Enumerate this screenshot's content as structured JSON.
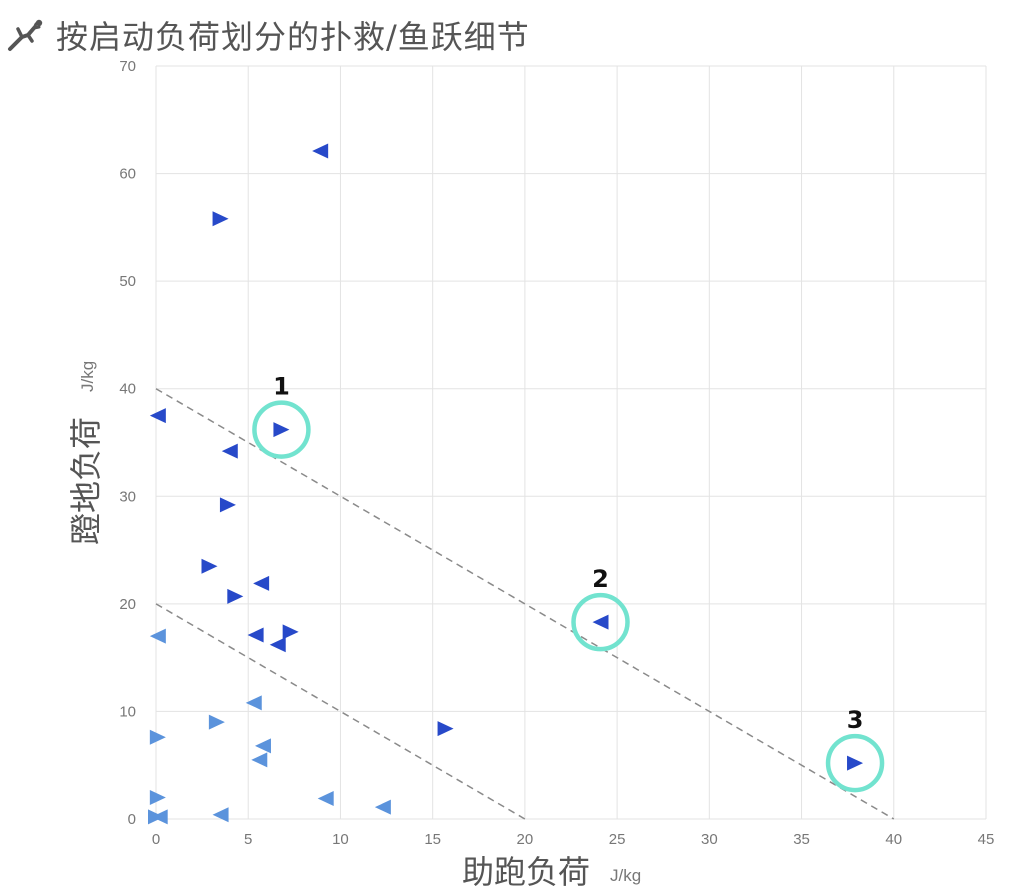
{
  "header": {
    "icon": "goalkeeper-dive-icon",
    "title": "按启动负荷划分的扑救/鱼跃细节"
  },
  "colors": {
    "marker_dark": "#2749c9",
    "marker_light": "#5b93dc",
    "circle": "#72e3cf",
    "grid": "#e3e3e3",
    "reference_line": "#8a8a8a"
  },
  "chart_data": {
    "type": "scatter",
    "title": "按启动负荷划分的扑救/鱼跃细节",
    "xlabel": "助跑负荷",
    "xunit": "J/kg",
    "ylabel": "蹬地负荷",
    "yunit": "J/kg",
    "xlim": [
      0,
      45
    ],
    "ylim": [
      0,
      70
    ],
    "xticks": [
      "0",
      "5",
      "10",
      "15",
      "20",
      "25",
      "30",
      "35",
      "40",
      "45"
    ],
    "yticks": [
      "0",
      "10",
      "20",
      "30",
      "40",
      "50",
      "60",
      "70"
    ],
    "grid": true,
    "marker": "triangle",
    "reference_lines": [
      {
        "x1": 0,
        "y1": 20,
        "x2": 20,
        "y2": 0,
        "style": "dashed"
      },
      {
        "x1": 0,
        "y1": 40,
        "x2": 40,
        "y2": 0,
        "style": "dashed"
      }
    ],
    "points": [
      {
        "x": 8.9,
        "y": 62.1,
        "dir": "left",
        "shade": "dark"
      },
      {
        "x": 3.5,
        "y": 55.8,
        "dir": "right",
        "shade": "dark"
      },
      {
        "x": 0.1,
        "y": 37.5,
        "dir": "left",
        "shade": "dark"
      },
      {
        "x": 6.8,
        "y": 36.2,
        "dir": "right",
        "shade": "dark"
      },
      {
        "x": 4.0,
        "y": 34.2,
        "dir": "left",
        "shade": "dark"
      },
      {
        "x": 3.9,
        "y": 29.2,
        "dir": "right",
        "shade": "dark"
      },
      {
        "x": 2.9,
        "y": 23.5,
        "dir": "right",
        "shade": "dark"
      },
      {
        "x": 5.7,
        "y": 21.9,
        "dir": "left",
        "shade": "dark"
      },
      {
        "x": 4.3,
        "y": 20.7,
        "dir": "right",
        "shade": "dark"
      },
      {
        "x": 24.1,
        "y": 18.3,
        "dir": "left",
        "shade": "dark"
      },
      {
        "x": 7.3,
        "y": 17.4,
        "dir": "right",
        "shade": "dark"
      },
      {
        "x": 5.4,
        "y": 17.1,
        "dir": "left",
        "shade": "dark"
      },
      {
        "x": 0.1,
        "y": 17.0,
        "dir": "left",
        "shade": "light"
      },
      {
        "x": 6.6,
        "y": 16.2,
        "dir": "left",
        "shade": "dark"
      },
      {
        "x": 5.3,
        "y": 10.8,
        "dir": "left",
        "shade": "light"
      },
      {
        "x": 3.3,
        "y": 9.0,
        "dir": "right",
        "shade": "light"
      },
      {
        "x": 15.7,
        "y": 8.4,
        "dir": "right",
        "shade": "dark"
      },
      {
        "x": 0.1,
        "y": 7.6,
        "dir": "right",
        "shade": "light"
      },
      {
        "x": 5.8,
        "y": 6.8,
        "dir": "left",
        "shade": "light"
      },
      {
        "x": 5.6,
        "y": 5.5,
        "dir": "left",
        "shade": "light"
      },
      {
        "x": 37.9,
        "y": 5.2,
        "dir": "right",
        "shade": "dark"
      },
      {
        "x": 0.1,
        "y": 2.0,
        "dir": "right",
        "shade": "light"
      },
      {
        "x": 9.2,
        "y": 1.9,
        "dir": "left",
        "shade": "light"
      },
      {
        "x": 12.3,
        "y": 1.1,
        "dir": "left",
        "shade": "light"
      },
      {
        "x": 3.5,
        "y": 0.4,
        "dir": "left",
        "shade": "light"
      },
      {
        "x": 0.0,
        "y": 0.2,
        "dir": "right",
        "shade": "light"
      },
      {
        "x": 0.2,
        "y": 0.2,
        "dir": "left",
        "shade": "light"
      }
    ],
    "callouts": [
      {
        "label": "1",
        "x": 6.8,
        "y": 36.2
      },
      {
        "label": "2",
        "x": 24.1,
        "y": 18.3
      },
      {
        "label": "3",
        "x": 37.9,
        "y": 5.2
      }
    ]
  }
}
